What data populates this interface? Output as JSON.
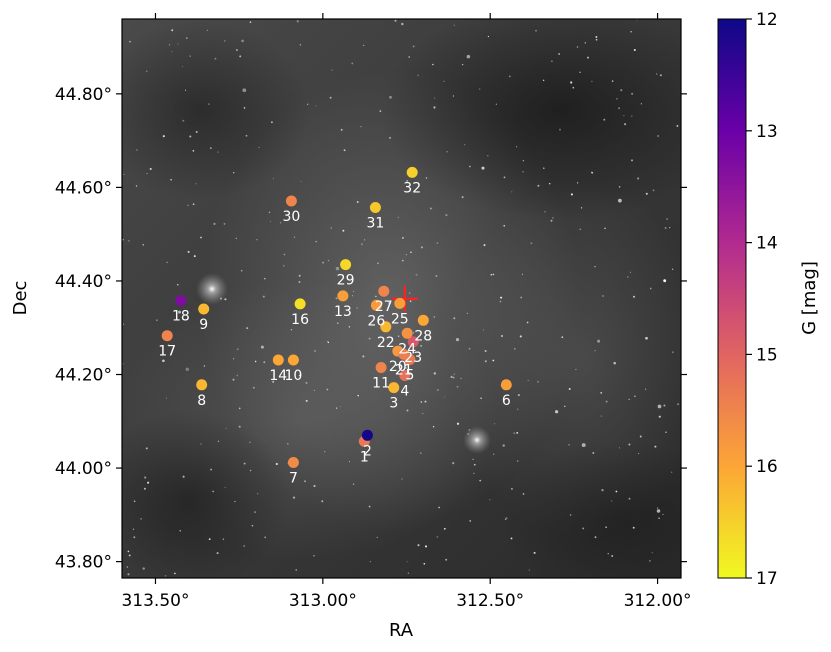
{
  "chart_data": {
    "type": "scatter",
    "xlabel": "RA",
    "ylabel": "Dec",
    "xlim": [
      313.6,
      311.93
    ],
    "ylim": [
      43.765,
      44.96
    ],
    "x_ticks": [
      313.5,
      313.0,
      312.5,
      312.0
    ],
    "x_tick_labels": [
      "313.50°",
      "313.00°",
      "312.50°",
      "312.00°"
    ],
    "y_ticks": [
      43.8,
      44.0,
      44.2,
      44.4,
      44.6,
      44.8
    ],
    "y_tick_labels": [
      "43.80°",
      "44.00°",
      "44.20°",
      "44.40°",
      "44.60°",
      "44.80°"
    ],
    "grid": false,
    "background": "grayscale nebula sky image",
    "colorbar": {
      "label": "G [mag]",
      "range": [
        12,
        17
      ],
      "ticks": [
        12,
        13,
        14,
        15,
        16,
        17
      ],
      "tick_labels": [
        "12",
        "13",
        "14",
        "15",
        "16",
        "17"
      ],
      "colormap": "plasma",
      "colors": [
        "#0d0887",
        "#6a00a8",
        "#b12a90",
        "#e16462",
        "#fca636",
        "#f0f921"
      ]
    },
    "marker": {
      "label": "",
      "ra": 312.755,
      "dec": 44.362,
      "color": "#ff2020",
      "shape": "plus"
    },
    "points": [
      {
        "label": "1",
        "ra": 312.876,
        "dec": 44.057,
        "g": 15.3
      },
      {
        "label": "2",
        "ra": 312.867,
        "dec": 44.07,
        "g": 12.1
      },
      {
        "label": "3",
        "ra": 312.788,
        "dec": 44.172,
        "g": 16.2
      },
      {
        "label": "4",
        "ra": 312.755,
        "dec": 44.198,
        "g": 15.2
      },
      {
        "label": "5",
        "ra": 312.74,
        "dec": 44.232,
        "g": 15.3
      },
      {
        "label": "6",
        "ra": 312.452,
        "dec": 44.178,
        "g": 15.9
      },
      {
        "label": "7",
        "ra": 313.088,
        "dec": 44.012,
        "g": 15.6
      },
      {
        "label": "8",
        "ra": 313.362,
        "dec": 44.178,
        "g": 16.2
      },
      {
        "label": "9",
        "ra": 313.356,
        "dec": 44.34,
        "g": 16.2
      },
      {
        "label": "10",
        "ra": 313.088,
        "dec": 44.231,
        "g": 16.0
      },
      {
        "label": "11",
        "ra": 312.826,
        "dec": 44.215,
        "g": 15.5
      },
      {
        "label": "13",
        "ra": 312.94,
        "dec": 44.368,
        "g": 15.9
      },
      {
        "label": "14",
        "ra": 313.133,
        "dec": 44.231,
        "g": 16.0
      },
      {
        "label": "16",
        "ra": 313.068,
        "dec": 44.351,
        "g": 16.7
      },
      {
        "label": "17",
        "ra": 313.465,
        "dec": 44.283,
        "g": 15.5
      },
      {
        "label": "18",
        "ra": 313.424,
        "dec": 44.358,
        "g": 13.3
      },
      {
        "label": "20",
        "ra": 312.776,
        "dec": 44.25,
        "g": 15.8
      },
      {
        "label": "21",
        "ra": 312.758,
        "dec": 44.243,
        "g": 15.4
      },
      {
        "label": "22",
        "ra": 312.812,
        "dec": 44.302,
        "g": 16.2
      },
      {
        "label": "23",
        "ra": 312.73,
        "dec": 44.27,
        "g": 14.8
      },
      {
        "label": "24",
        "ra": 312.748,
        "dec": 44.288,
        "g": 15.7
      },
      {
        "label": "25",
        "ra": 312.77,
        "dec": 44.352,
        "g": 15.9
      },
      {
        "label": "26",
        "ra": 312.84,
        "dec": 44.348,
        "g": 15.8
      },
      {
        "label": "27",
        "ra": 312.818,
        "dec": 44.378,
        "g": 15.5
      },
      {
        "label": "28",
        "ra": 312.7,
        "dec": 44.316,
        "g": 16.0
      },
      {
        "label": "29",
        "ra": 312.932,
        "dec": 44.435,
        "g": 16.6
      },
      {
        "label": "30",
        "ra": 313.094,
        "dec": 44.571,
        "g": 15.5
      },
      {
        "label": "31",
        "ra": 312.843,
        "dec": 44.557,
        "g": 16.4
      },
      {
        "label": "32",
        "ra": 312.733,
        "dec": 44.632,
        "g": 16.5
      }
    ]
  }
}
